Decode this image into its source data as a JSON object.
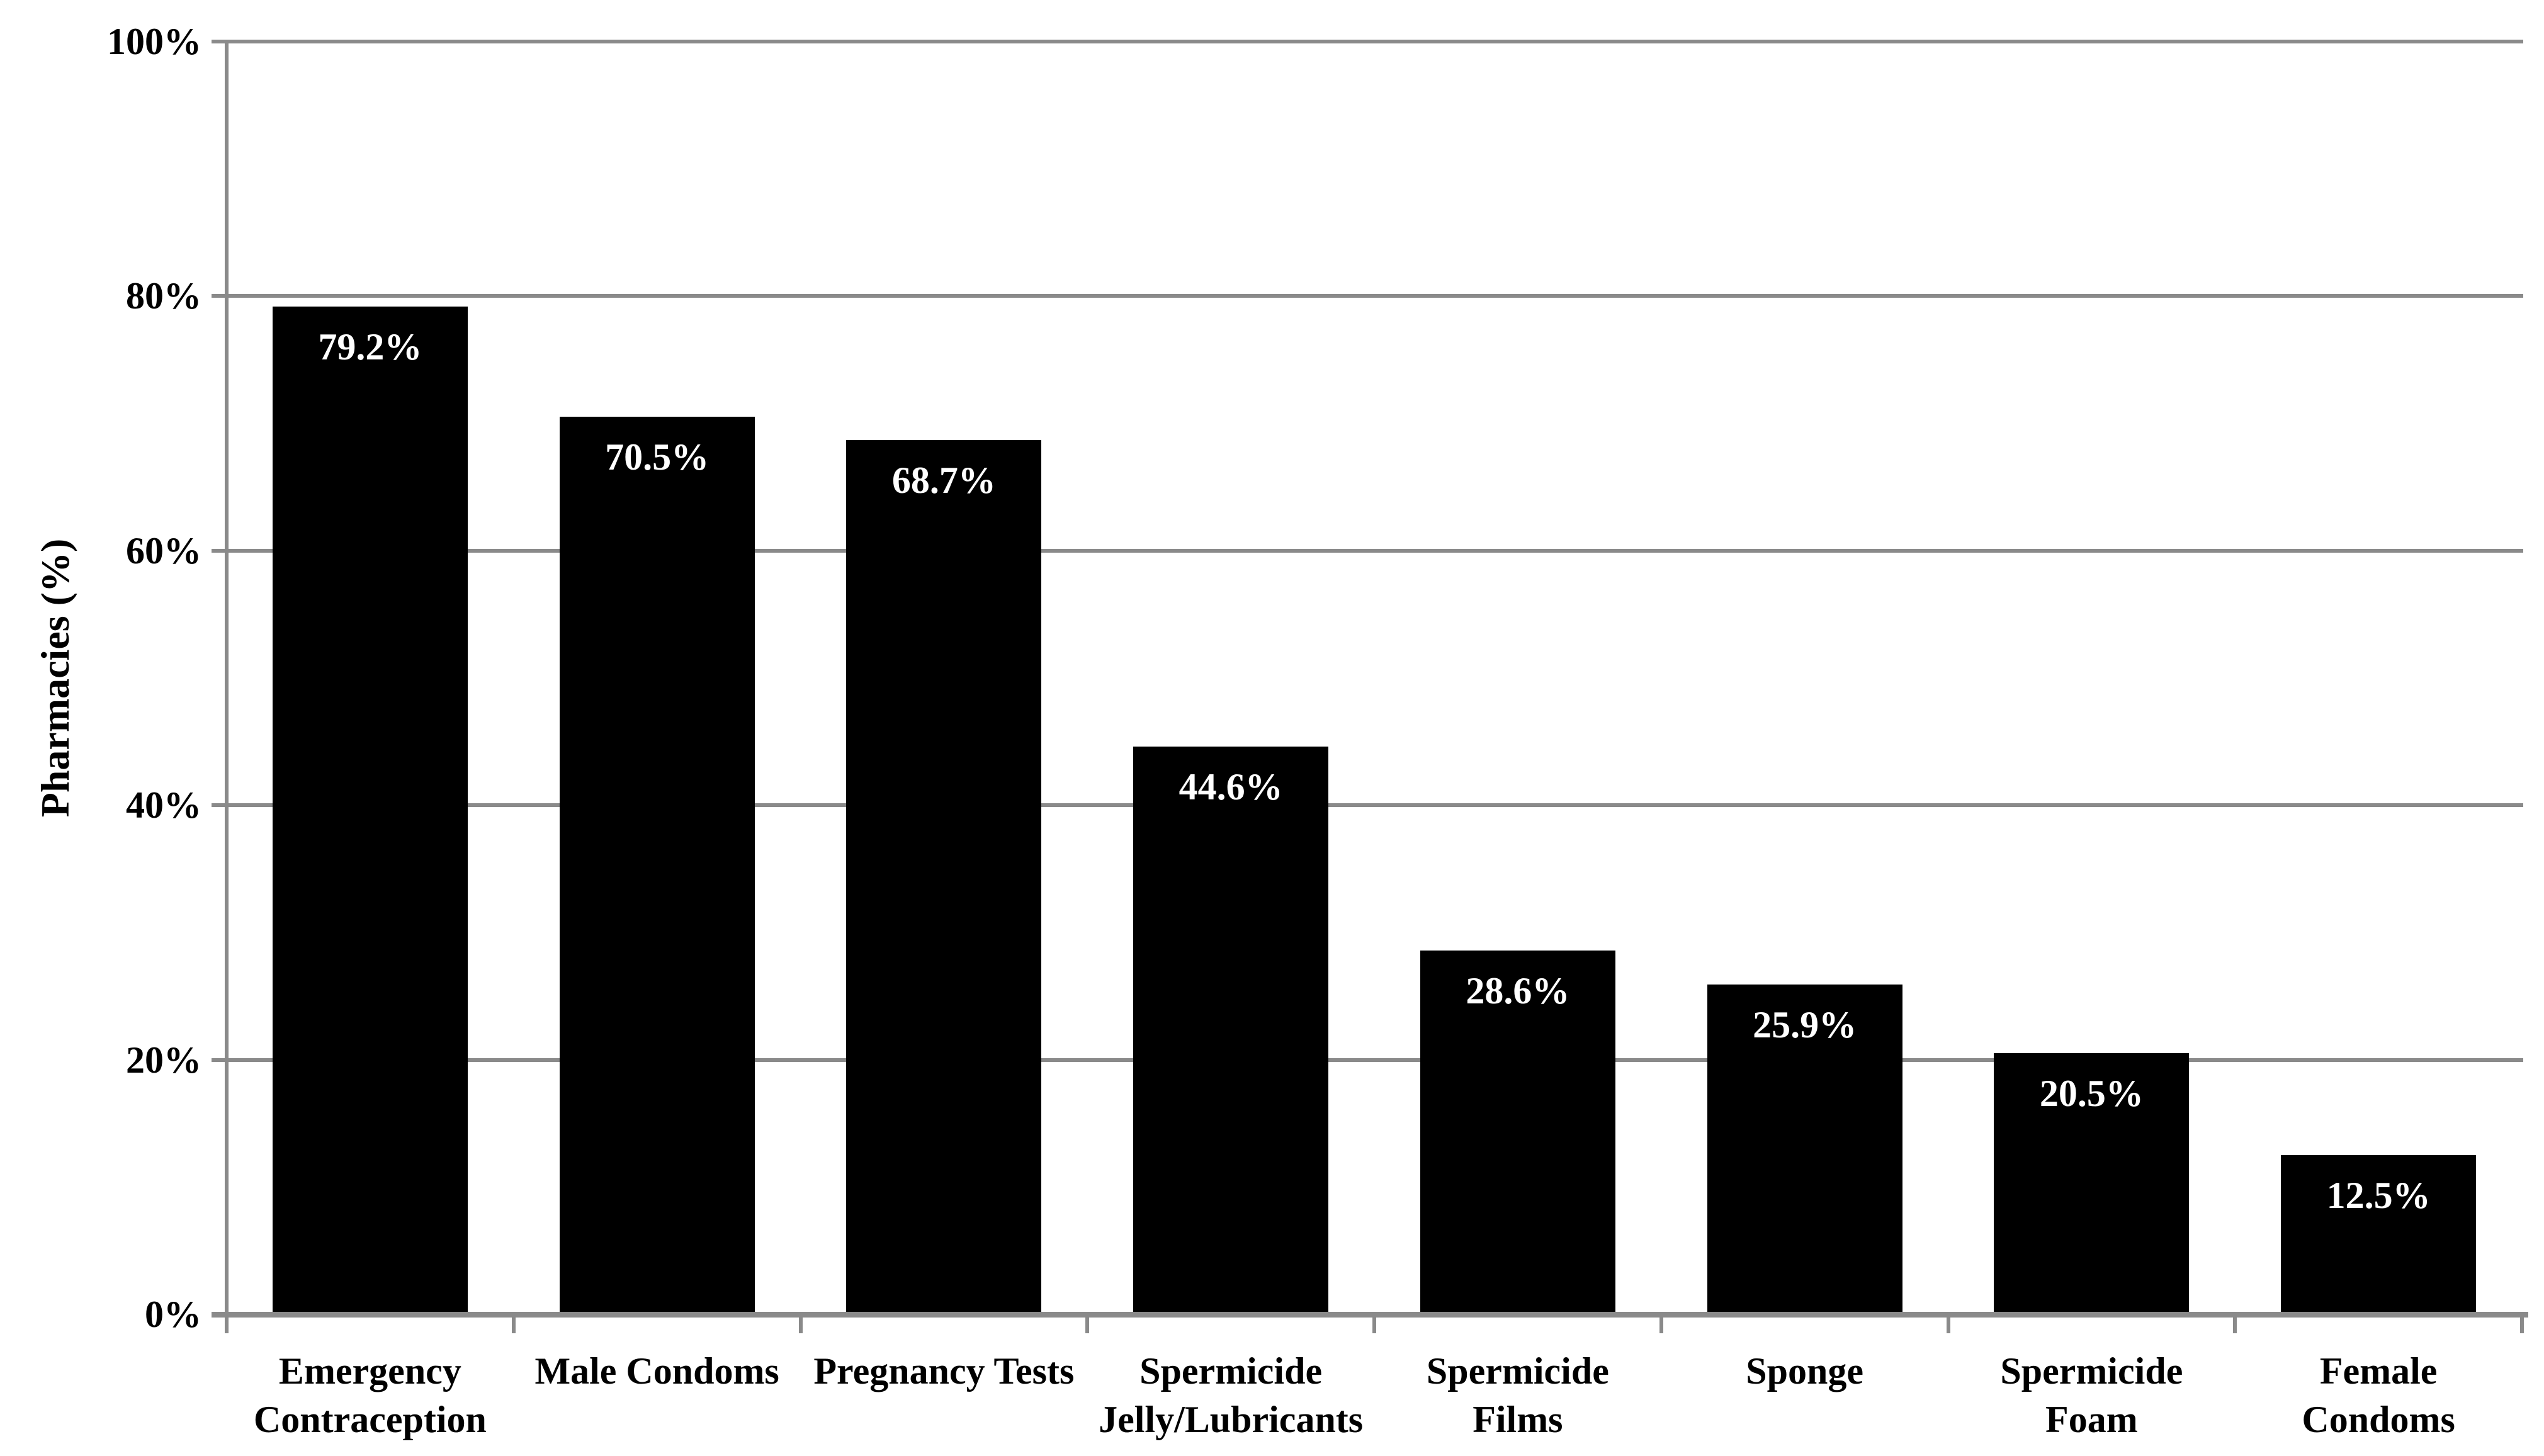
{
  "chart_data": {
    "type": "bar",
    "title": "",
    "xlabel": "",
    "ylabel": "Pharmacies (%)",
    "ylim": [
      0,
      100
    ],
    "ytick_interval": 20,
    "ytick_labels": [
      "0%",
      "20%",
      "40%",
      "60%",
      "80%",
      "100%"
    ],
    "grid": "horizontal",
    "legend": "none",
    "categories": [
      "Emergency\nContraception",
      "Male Condoms",
      "Pregnancy Tests",
      "Spermicide\nJelly/Lubricants",
      "Spermicide\nFilms",
      "Sponge",
      "Spermicide\nFoam",
      "Female\nCondoms"
    ],
    "values": [
      79.2,
      70.5,
      68.7,
      44.6,
      28.6,
      25.9,
      20.5,
      12.5
    ],
    "data_labels": [
      "79.2%",
      "70.5%",
      "68.7%",
      "44.6%",
      "28.6%",
      "25.9%",
      "20.5%",
      "12.5%"
    ],
    "colors": {
      "bar": "#000000",
      "gridline": "#8a8a8a",
      "axis": "#8a8a8a",
      "data_label": "#ffffff",
      "text": "#000000",
      "background": "#ffffff"
    }
  }
}
